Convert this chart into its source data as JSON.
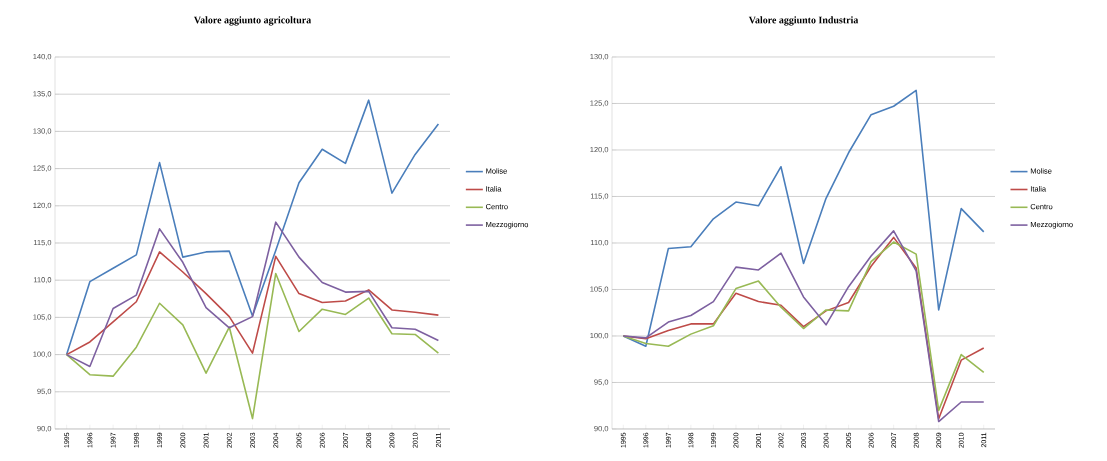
{
  "chart_data": [
    {
      "type": "line",
      "title": "Valore aggiunto agricoltura",
      "categories": [
        "1995",
        "1996",
        "1997",
        "1998",
        "1999",
        "2000",
        "2001",
        "2002",
        "2003",
        "2004",
        "2005",
        "2006",
        "2007",
        "2008",
        "2009",
        "2010",
        "2011"
      ],
      "series": [
        {
          "name": "Molise",
          "color": "#4a7ebb",
          "values": [
            100,
            109.8,
            111.6,
            113.4,
            125.8,
            113.1,
            113.8,
            113.9,
            105.2,
            114.0,
            123.1,
            127.6,
            125.7,
            134.2,
            121.7,
            126.9,
            131.0
          ]
        },
        {
          "name": "Italia",
          "color": "#be4b48",
          "values": [
            100,
            101.7,
            104.4,
            107.1,
            113.8,
            111.1,
            108.2,
            105.1,
            100.2,
            113.2,
            108.2,
            107.0,
            107.2,
            108.7,
            106.0,
            105.7,
            105.3
          ]
        },
        {
          "name": "Centro",
          "color": "#98b954",
          "values": [
            100,
            97.3,
            97.1,
            101.0,
            106.9,
            104.0,
            97.5,
            103.7,
            91.4,
            110.9,
            103.1,
            106.1,
            105.4,
            107.6,
            102.8,
            102.7,
            100.2
          ]
        },
        {
          "name": "Mezzogiorno",
          "color": "#7d60a0",
          "values": [
            100,
            98.4,
            106.2,
            108.0,
            116.9,
            112.4,
            106.3,
            103.6,
            105.1,
            117.8,
            113.1,
            109.7,
            108.4,
            108.5,
            103.6,
            103.4,
            101.9
          ]
        }
      ],
      "ylim": [
        90,
        140
      ],
      "yticks": [
        {
          "value": 90,
          "label": "90,0"
        },
        {
          "value": 95,
          "label": "95,0"
        },
        {
          "value": 100,
          "label": "100,0"
        },
        {
          "value": 105,
          "label": "105,0"
        },
        {
          "value": 110,
          "label": "110,0"
        },
        {
          "value": 115,
          "label": "115,0"
        },
        {
          "value": 120,
          "label": "120,0"
        },
        {
          "value": 125,
          "label": "125,0"
        },
        {
          "value": 130,
          "label": "130,0"
        },
        {
          "value": 135,
          "label": "135,0"
        },
        {
          "value": 140,
          "label": "140,0"
        }
      ],
      "grid": "y",
      "legend": "right",
      "marker": "none",
      "line_style": "solid"
    },
    {
      "type": "line",
      "title": "Valore aggiunto Industria",
      "categories": [
        "1995",
        "1996",
        "1997",
        "1998",
        "1999",
        "2000",
        "2001",
        "2002",
        "2003",
        "2004",
        "2005",
        "2006",
        "2007",
        "2008",
        "2009",
        "2010",
        "2011"
      ],
      "series": [
        {
          "name": "Molise",
          "color": "#4a7ebb",
          "values": [
            100,
            98.9,
            109.4,
            109.6,
            112.6,
            114.4,
            114.0,
            118.2,
            107.8,
            114.8,
            119.7,
            123.8,
            124.7,
            126.4,
            102.8,
            113.7,
            111.2
          ]
        },
        {
          "name": "Italia",
          "color": "#be4b48",
          "values": [
            100,
            99.7,
            100.6,
            101.3,
            101.3,
            104.6,
            103.7,
            103.3,
            101.0,
            102.7,
            103.6,
            107.5,
            110.6,
            107.3,
            91.1,
            97.4,
            98.7
          ]
        },
        {
          "name": "Centro",
          "color": "#98b954",
          "values": [
            100,
            99.2,
            98.9,
            100.2,
            101.1,
            105.1,
            105.9,
            103.1,
            100.8,
            102.8,
            102.7,
            108.0,
            110.1,
            108.8,
            92.0,
            98.0,
            96.1
          ]
        },
        {
          "name": "Mezzogiorno",
          "color": "#7d60a0",
          "values": [
            100,
            99.8,
            101.5,
            102.2,
            103.7,
            107.4,
            107.1,
            108.9,
            104.2,
            101.2,
            105.3,
            108.6,
            111.3,
            107.0,
            90.8,
            92.9,
            92.9
          ]
        }
      ],
      "ylim": [
        90,
        130
      ],
      "yticks": [
        {
          "value": 90,
          "label": "90,0"
        },
        {
          "value": 95,
          "label": "95,0"
        },
        {
          "value": 100,
          "label": "100,0"
        },
        {
          "value": 105,
          "label": "105,0"
        },
        {
          "value": 110,
          "label": "110,0"
        },
        {
          "value": 115,
          "label": "115,0"
        },
        {
          "value": 120,
          "label": "120,0"
        },
        {
          "value": 125,
          "label": "125,0"
        },
        {
          "value": 130,
          "label": "130,0"
        }
      ],
      "grid": "y",
      "legend": "right",
      "marker": "none",
      "line_style": "solid"
    }
  ]
}
